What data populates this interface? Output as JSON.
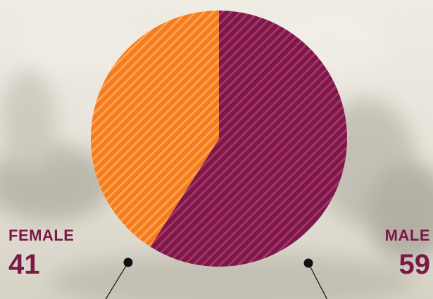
{
  "chart_data": {
    "type": "pie",
    "title": "",
    "slices": [
      {
        "label": "MALE",
        "value": 59,
        "color": "#7a1846"
      },
      {
        "label": "FEMALE",
        "value": 41,
        "color": "#f47b20"
      }
    ],
    "start_angle_deg": 0,
    "direction": "clockwise",
    "pattern": "diagonal-stripes"
  },
  "labels": {
    "female": {
      "name": "FEMALE",
      "value": "41"
    },
    "male": {
      "name": "MALE",
      "value": "59"
    }
  },
  "colors": {
    "female_text": "#7a1846",
    "male_text": "#7a1846",
    "male_slice": "#7a1846",
    "male_stripe": "#a8326b",
    "female_slice": "#f47b20",
    "female_stripe": "#ffa34d",
    "leader_line": "#111111",
    "background": "#ebe8df"
  }
}
